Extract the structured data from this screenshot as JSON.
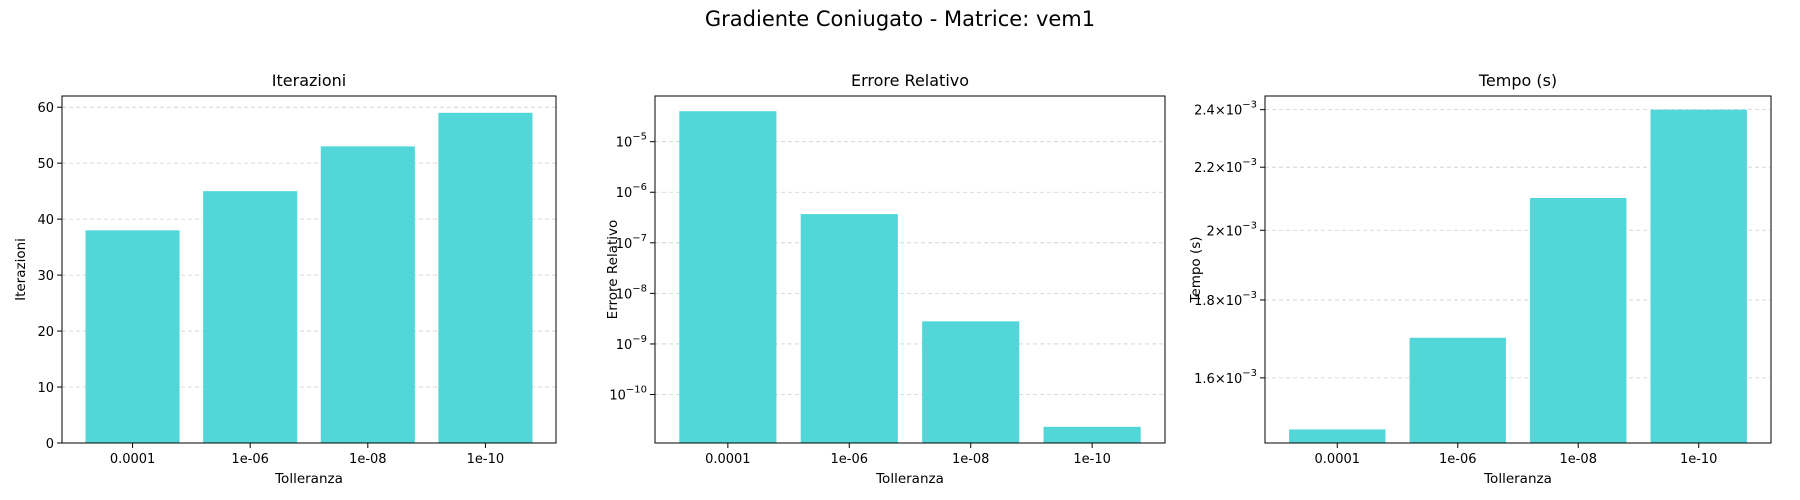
{
  "figure": {
    "suptitle": "Gradiente Coniugato - Matrice: vem1",
    "bar_color": "#53d6d8"
  },
  "chart_data": [
    {
      "type": "bar",
      "title": "Iterazioni",
      "xlabel": "Tolleranza",
      "ylabel": "Iterazioni",
      "categories": [
        "0.0001",
        "1e-06",
        "1e-08",
        "1e-10"
      ],
      "values": [
        38,
        45,
        53,
        59
      ],
      "yscale": "linear",
      "ylim": [
        0,
        62
      ],
      "yticks": [
        0,
        10,
        20,
        30,
        40,
        50,
        60
      ],
      "grid": "y"
    },
    {
      "type": "bar",
      "title": "Errore Relativo",
      "xlabel": "Tolleranza",
      "ylabel": "Errore Relativo",
      "categories": [
        "0.0001",
        "1e-06",
        "1e-08",
        "1e-10"
      ],
      "values": [
        4e-05,
        3.7e-07,
        2.8e-09,
        2.3e-11
      ],
      "yscale": "log",
      "ylim": [
        1.1e-11,
        8e-05
      ],
      "yticks": [
        {
          "base": "10",
          "exp": "−5",
          "value": 1e-05
        },
        {
          "base": "10",
          "exp": "−6",
          "value": 1e-06
        },
        {
          "base": "10",
          "exp": "−7",
          "value": 1e-07
        },
        {
          "base": "10",
          "exp": "−8",
          "value": 1e-08
        },
        {
          "base": "10",
          "exp": "−9",
          "value": 1e-09
        },
        {
          "base": "10",
          "exp": "−10",
          "value": 1e-10
        }
      ],
      "grid": "y"
    },
    {
      "type": "bar",
      "title": "Tempo (s)",
      "xlabel": "Tolleranza",
      "ylabel": "Tempo (s)",
      "categories": [
        "0.0001",
        "1e-06",
        "1e-08",
        "1e-10"
      ],
      "values": [
        0.00148,
        0.0017,
        0.0021,
        0.0024
      ],
      "yscale": "log",
      "ylim": [
        0.00145,
        0.00245
      ],
      "yticks": [
        {
          "mant": "1.6",
          "base": "10",
          "exp": "−3",
          "value": 0.0016
        },
        {
          "mant": "1.8",
          "base": "10",
          "exp": "−3",
          "value": 0.0018
        },
        {
          "mant": "2",
          "base": "10",
          "exp": "−3",
          "value": 0.002
        },
        {
          "mant": "2.2",
          "base": "10",
          "exp": "−3",
          "value": 0.0022
        },
        {
          "mant": "2.4",
          "base": "10",
          "exp": "−3",
          "value": 0.0024
        }
      ],
      "grid": "y"
    }
  ]
}
